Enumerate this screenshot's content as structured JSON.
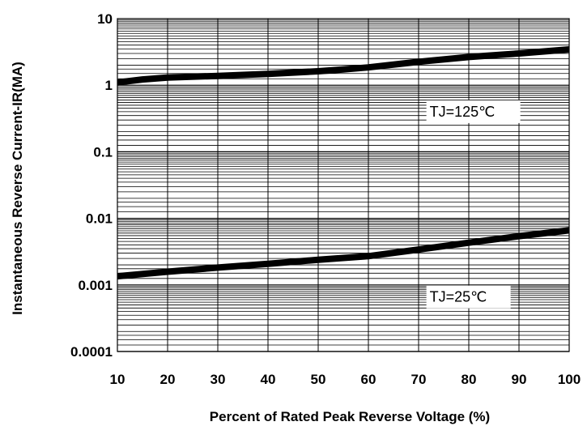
{
  "chart_data": {
    "type": "line",
    "title": "",
    "xlabel": "Percent of Rated Peak Reverse Voltage (%)",
    "ylabel": "Instantaneous Reverse Current-IR(MA)",
    "xlim": [
      10,
      100
    ],
    "ylim": [
      0.0001,
      10
    ],
    "yscale": "log",
    "grid": true,
    "x_ticks": [
      "10",
      "20",
      "30",
      "40",
      "50",
      "60",
      "70",
      "80",
      "90",
      "100"
    ],
    "y_ticks": [
      "10",
      "1",
      "0.1",
      "0.01",
      "0.001",
      "0.0001"
    ],
    "series": [
      {
        "name": "TJ=125℃",
        "x": [
          10,
          15,
          20,
          30,
          40,
          50,
          55,
          60,
          70,
          80,
          90,
          100
        ],
        "y": [
          1.1,
          1.22,
          1.3,
          1.38,
          1.48,
          1.62,
          1.72,
          1.85,
          2.25,
          2.65,
          3.0,
          3.45
        ]
      },
      {
        "name": "TJ=25℃",
        "x": [
          10,
          20,
          30,
          40,
          50,
          60,
          70,
          80,
          90,
          100
        ],
        "y": [
          0.00135,
          0.00158,
          0.00182,
          0.00208,
          0.00238,
          0.0027,
          0.0034,
          0.0043,
          0.0054,
          0.0066
        ]
      }
    ],
    "annotations": [
      "TJ=125℃",
      "TJ=25℃"
    ],
    "colors": {
      "line": "#000000",
      "grid": "#000000",
      "background": "#ffffff"
    }
  }
}
